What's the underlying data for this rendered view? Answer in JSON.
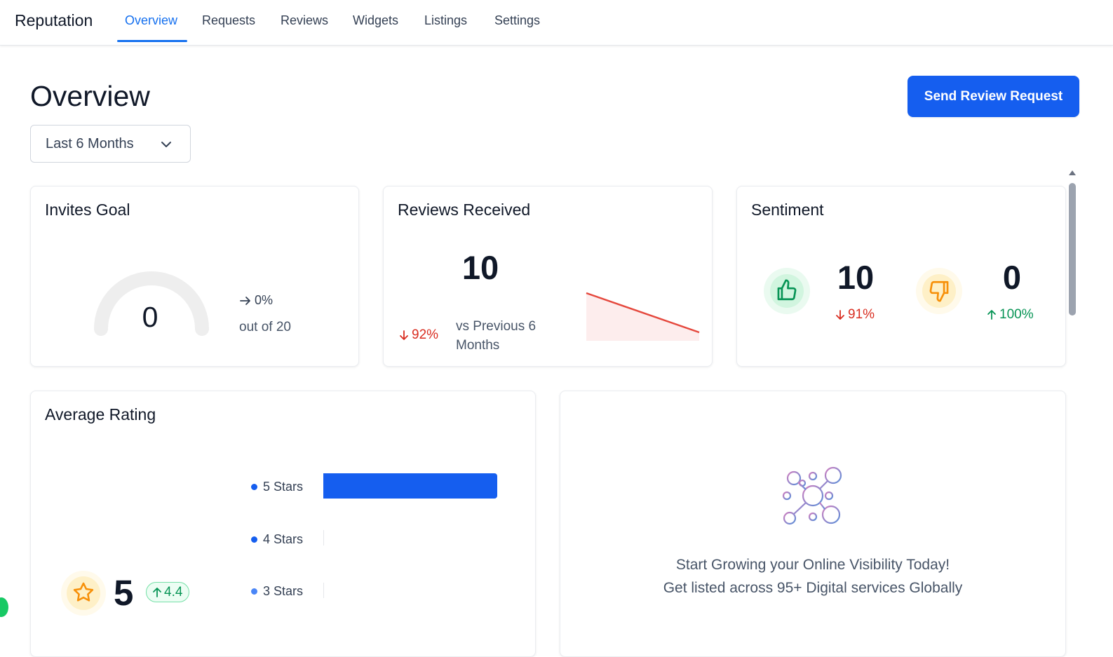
{
  "brand": "Reputation",
  "tabs": [
    {
      "label": "Overview",
      "active": true
    },
    {
      "label": "Requests"
    },
    {
      "label": "Reviews"
    },
    {
      "label": "Widgets"
    },
    {
      "label": "Listings"
    },
    {
      "label": "Settings"
    }
  ],
  "page_title": "Overview",
  "send_button": "Send Review Request",
  "date_range": "Last 6 Months",
  "invites": {
    "title": "Invites Goal",
    "value": "0",
    "change": "0%",
    "goal_text": "out of 20",
    "progress": 0
  },
  "reviews_received": {
    "title": "Reviews Received",
    "value": "10",
    "change": "92%",
    "compare_text_line1": "vs Previous 6",
    "compare_text_line2": "Months"
  },
  "sentiment": {
    "title": "Sentiment",
    "positive_value": "10",
    "positive_change": "91%",
    "negative_value": "0",
    "negative_change": "100%"
  },
  "average_rating": {
    "title": "Average Rating",
    "value": "5",
    "change_badge": "4.4",
    "bars": [
      {
        "label": "5 Stars",
        "fraction": 1.0
      },
      {
        "label": "4 Stars",
        "fraction": 0
      },
      {
        "label": "3 Stars",
        "fraction": 0
      }
    ]
  },
  "promo": {
    "line1": "Start Growing your Online Visibility Today!",
    "line2": "Get listed across 95+ Digital services Globally"
  },
  "colors": {
    "primary": "#155eef",
    "negative": "#d92d20",
    "positive": "#079455",
    "star": "#f79009"
  }
}
